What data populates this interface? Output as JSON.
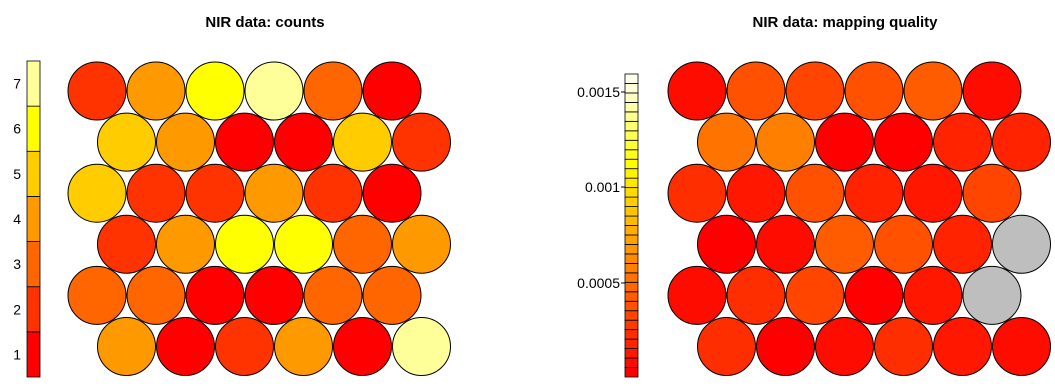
{
  "chart_data": [
    {
      "type": "heatmap",
      "title": "NIR data: counts",
      "colorbar": {
        "tick_labels": [
          "1",
          "2",
          "3",
          "4",
          "5",
          "6",
          "7"
        ],
        "bins": 7,
        "colors": [
          "#ff0000",
          "#ff3300",
          "#ff6600",
          "#ff9900",
          "#ffcc00",
          "#ffff00",
          "#ffff99"
        ]
      },
      "empty_color": "#bebebe",
      "grid": {
        "rows": 6,
        "cols": 6,
        "layout": "hexagonal"
      },
      "values": [
        [
          2,
          4,
          6,
          7,
          3,
          1
        ],
        [
          5,
          4,
          1,
          1,
          5,
          2
        ],
        [
          5,
          2,
          2,
          4,
          2,
          1
        ],
        [
          2,
          4,
          6,
          6,
          3,
          4
        ],
        [
          3,
          3,
          1,
          1,
          3,
          3
        ],
        [
          4,
          1,
          2,
          4,
          1,
          8
        ]
      ]
    },
    {
      "type": "heatmap",
      "title": "NIR data: mapping quality",
      "colorbar": {
        "tick_labels": [
          "0.0005",
          "0.001",
          "0.0015"
        ],
        "bins": 32,
        "ticks": [
          0.0005,
          0.001,
          0.0015
        ],
        "colors": [
          "#ff0000",
          "#ff1a00",
          "#ff3300",
          "#ff4d00",
          "#ff6600",
          "#ff8000",
          "#ff9900",
          "#ffb300",
          "#ffcc00",
          "#ffe600",
          "#ffff00",
          "#ffff40",
          "#ffff80",
          "#ffffbf",
          "#fffff0"
        ]
      },
      "empty_color": "#bebebe",
      "grid": {
        "rows": 6,
        "cols": 6,
        "layout": "hexagonal"
      },
      "values": [
        [
          2,
          8,
          7,
          8,
          9,
          2
        ],
        [
          11,
          12,
          1,
          1,
          4,
          4
        ],
        [
          5,
          3,
          8,
          4,
          3,
          7
        ],
        [
          1,
          2,
          9,
          8,
          4,
          0
        ],
        [
          2,
          5,
          7,
          1,
          3,
          0
        ],
        [
          5,
          1,
          2,
          5,
          3,
          2
        ]
      ]
    }
  ]
}
